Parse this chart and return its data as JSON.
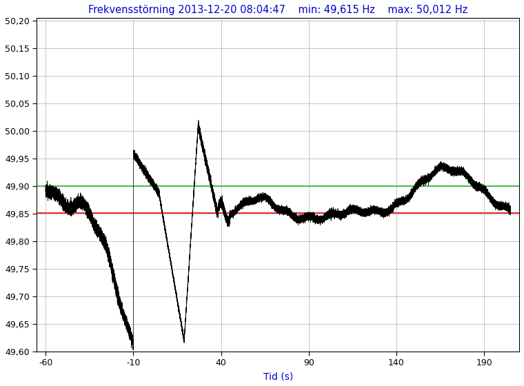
{
  "title": "Frekvensstörning 2013-12-20 08:04:47    min: 49,615 Hz    max: 50,012 Hz",
  "xlabel": "Tid (s)",
  "title_color": "#0000CC",
  "xlabel_color": "#0000CC",
  "ylim": [
    49.6,
    50.205
  ],
  "xlim": [
    -65,
    210
  ],
  "xticks": [
    -60,
    -10,
    40,
    90,
    140,
    190
  ],
  "yticks": [
    49.6,
    49.65,
    49.7,
    49.75,
    49.8,
    49.85,
    49.9,
    49.95,
    50.0,
    50.05,
    50.1,
    50.15,
    50.2
  ],
  "green_line_y": 49.9,
  "red_line_y": 49.851,
  "line_color": "#000000",
  "green_color": "#00BB00",
  "red_color": "#EE0000",
  "background_color": "#ffffff",
  "grid_color": "#999999"
}
